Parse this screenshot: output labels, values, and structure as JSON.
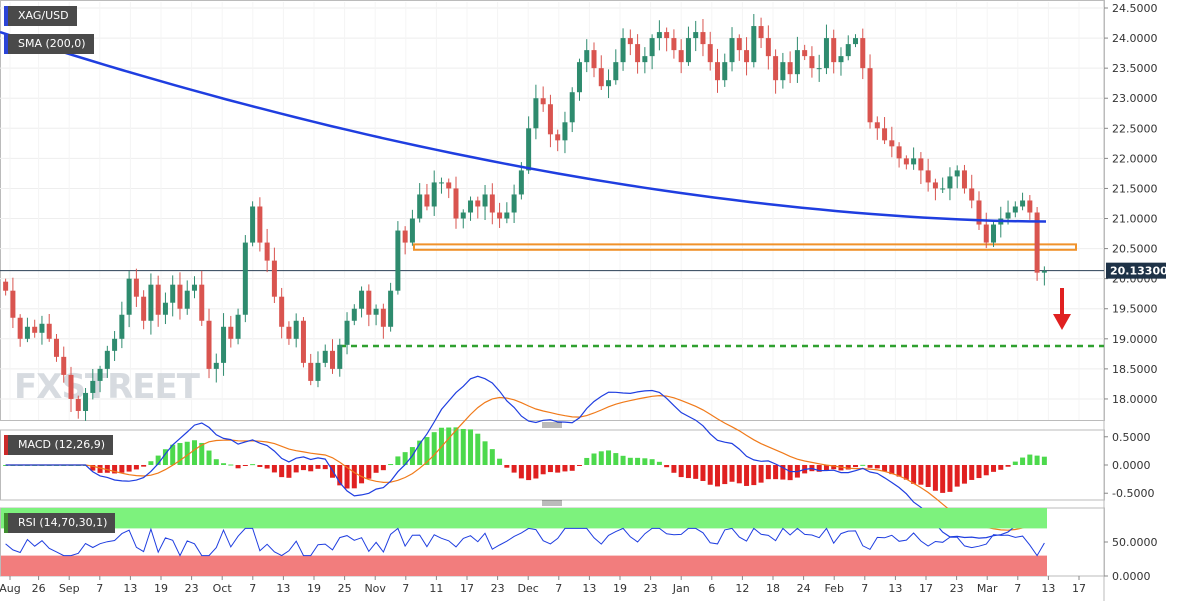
{
  "labels": {
    "symbol": "XAG/USD",
    "sma": "SMA (200,0)",
    "macd": "MACD (12,26,9)",
    "rsi": "RSI (14,70,30,1)",
    "watermark": "FXSTREET",
    "last_price": "20.13300"
  },
  "colors": {
    "bull": "#2e8b6e",
    "bear": "#d9544f",
    "sma": "#1f3ee0",
    "zone": "#f0922b",
    "support": "#2fa02f",
    "arrow": "#e02020",
    "macd_line": "#1f3ee0",
    "signal_line": "#f07a1a",
    "hist_pos": "#4cd94c",
    "hist_neg": "#e02020",
    "rsi_line": "#1f3ee0",
    "rsi_over": "#7df27d",
    "rsi_under": "#f27d7d"
  },
  "chart_data": [
    {
      "type": "candlestick",
      "title": "XAG/USD",
      "y_ticks": [
        "24.5000",
        "24.0000",
        "23.5000",
        "23.0000",
        "22.5000",
        "22.0000",
        "21.5000",
        "21.0000",
        "20.5000",
        "20.0000",
        "19.5000",
        "19.0000",
        "18.5000",
        "18.0000"
      ],
      "ylim": [
        17.65,
        24.6
      ],
      "x_ticks": [
        "Aug",
        "26",
        "Sep",
        "7",
        "13",
        "19",
        "23",
        "Oct",
        "7",
        "13",
        "19",
        "25",
        "Nov",
        "7",
        "11",
        "17",
        "23",
        "Dec",
        "7",
        "13",
        "19",
        "23",
        "Jan",
        "6",
        "12",
        "18",
        "24",
        "Feb",
        "7",
        "13",
        "17",
        "23",
        "Mar",
        "7",
        "13",
        "17"
      ],
      "last_price": 20.133,
      "resistance_zone": [
        20.48,
        20.57
      ],
      "support_level": 18.88,
      "trend_arrow": "down",
      "closes": [
        19.8,
        19.35,
        19.0,
        19.2,
        19.1,
        19.25,
        19.0,
        18.7,
        18.4,
        18.0,
        17.8,
        18.1,
        18.3,
        18.5,
        18.8,
        19.0,
        19.4,
        20.0,
        19.7,
        19.3,
        19.9,
        19.4,
        19.6,
        19.9,
        19.5,
        19.8,
        19.9,
        19.3,
        18.5,
        18.6,
        19.2,
        19.0,
        19.4,
        20.6,
        21.2,
        20.6,
        20.3,
        19.7,
        19.2,
        19.0,
        19.3,
        18.6,
        18.3,
        18.6,
        18.8,
        18.5,
        18.9,
        19.3,
        19.5,
        19.8,
        19.4,
        19.5,
        19.2,
        19.8,
        20.8,
        20.6,
        21.0,
        21.4,
        21.2,
        21.6,
        21.6,
        21.5,
        21.0,
        21.1,
        21.3,
        21.2,
        21.4,
        21.1,
        21.0,
        21.1,
        21.4,
        21.8,
        22.5,
        23.0,
        22.9,
        22.4,
        22.3,
        22.6,
        23.1,
        23.6,
        23.8,
        23.5,
        23.2,
        23.3,
        23.6,
        24.0,
        23.9,
        23.6,
        23.7,
        24.0,
        24.1,
        24.0,
        23.8,
        23.6,
        24.0,
        24.1,
        23.9,
        23.6,
        23.3,
        23.6,
        24.0,
        23.8,
        23.6,
        24.2,
        24.0,
        23.7,
        23.3,
        23.6,
        23.4,
        23.8,
        23.7,
        23.5,
        23.5,
        24.0,
        23.6,
        23.7,
        23.9,
        24.0,
        23.5,
        22.6,
        22.5,
        22.3,
        22.2,
        22.0,
        21.9,
        22.0,
        21.8,
        21.6,
        21.5,
        21.5,
        21.7,
        21.8,
        21.5,
        21.3,
        20.9,
        20.6,
        20.9,
        21.0,
        21.1,
        21.2,
        21.3,
        21.1,
        20.1,
        20.13
      ],
      "series": [
        {
          "name": "SMA (200,0)",
          "from": 24.1,
          "to": 20.95
        },
        {
          "name": "MACD (12,26,9)",
          "ylim": [
            -0.62,
            0.62
          ],
          "y_ticks": [
            "0.5000",
            "0.0000",
            "-0.5000"
          ]
        },
        {
          "name": "RSI (14,70,30,1)",
          "ylim": [
            0,
            100
          ],
          "y_ticks": [
            "50.0000",
            "0.0000"
          ],
          "overbought": 70,
          "oversold": 30
        }
      ]
    }
  ]
}
